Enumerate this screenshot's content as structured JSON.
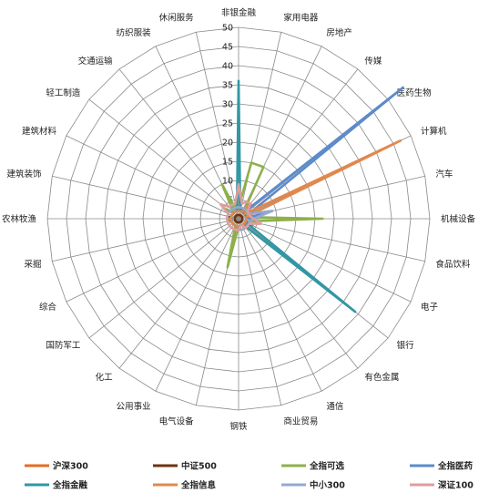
{
  "chart_data": {
    "type": "radar",
    "categories": [
      "非银金融",
      "家用电器",
      "房地产",
      "传媒",
      "医药生物",
      "计算机",
      "汽车",
      "机械设备",
      "食品饮料",
      "电子",
      "银行",
      "有色金属",
      "通信",
      "商业贸易",
      "钢铁",
      "电气设备",
      "公用事业",
      "化工",
      "国防军工",
      "综合",
      "采掘",
      "农林牧渔",
      "建筑装饰",
      "建筑材料",
      "轻工制造",
      "交通运输",
      "纺织服装",
      "休闲服务"
    ],
    "rlim": [
      0,
      50
    ],
    "rticks": [
      0,
      5,
      10,
      15,
      20,
      25,
      30,
      35,
      40,
      45,
      50
    ],
    "legend_position": "bottom",
    "series": [
      {
        "name": "沪深300",
        "color": "#e46c22",
        "values": [
          3,
          2,
          2,
          2,
          2,
          2,
          2,
          3,
          3,
          2,
          2,
          2,
          2,
          2,
          2,
          2,
          2,
          2,
          2,
          2,
          2,
          2,
          2,
          2,
          2,
          2,
          2,
          2
        ]
      },
      {
        "name": "中证500",
        "color": "#6e3310",
        "values": [
          1,
          1,
          1,
          1,
          1,
          1,
          1,
          1,
          1,
          1,
          1,
          1,
          1,
          1,
          1,
          1,
          1,
          1,
          1,
          1,
          1,
          1,
          1,
          1,
          1,
          1,
          1,
          1
        ]
      },
      {
        "name": "全指可选",
        "color": "#8db04a",
        "values": [
          3,
          15,
          15,
          2,
          2,
          2,
          2,
          22,
          3,
          2,
          2,
          2,
          2,
          2,
          2,
          13,
          2,
          2,
          2,
          2,
          2,
          3,
          3,
          3,
          4,
          2,
          10,
          2
        ]
      },
      {
        "name": "全指医药",
        "color": "#5b8bcb",
        "values": [
          2,
          3,
          2,
          2,
          55,
          3,
          9,
          2,
          2,
          4,
          2,
          2,
          2,
          2,
          2,
          2,
          2,
          2,
          2,
          2,
          2,
          2,
          2,
          2,
          2,
          2,
          2,
          2
        ]
      },
      {
        "name": "全指金融",
        "color": "#3197a4",
        "values": [
          36,
          2,
          2,
          2,
          2,
          2,
          2,
          2,
          2,
          2,
          39,
          2,
          2,
          2,
          2,
          2,
          2,
          2,
          2,
          2,
          2,
          2,
          2,
          2,
          2,
          2,
          2,
          2
        ]
      },
      {
        "name": "全指信息",
        "color": "#e1884d",
        "values": [
          2,
          2,
          2,
          5,
          2,
          47,
          2,
          2,
          2,
          2,
          2,
          2,
          3,
          3,
          2,
          2,
          2,
          2,
          2,
          2,
          2,
          2,
          2,
          2,
          2,
          2,
          2,
          2
        ]
      },
      {
        "name": "中小300",
        "color": "#94a8d2",
        "values": [
          3,
          3,
          3,
          3,
          3,
          3,
          9,
          4,
          3,
          3,
          3,
          3,
          3,
          3,
          3,
          3,
          3,
          3,
          3,
          3,
          3,
          3,
          3,
          3,
          3,
          3,
          3,
          3
        ]
      },
      {
        "name": "深证100",
        "color": "#df9d9d",
        "values": [
          9,
          4,
          5,
          5,
          3,
          3,
          3,
          4,
          6,
          3,
          3,
          3,
          2,
          2,
          3,
          3,
          3,
          3,
          3,
          3,
          3,
          3,
          3,
          3,
          6,
          4,
          4,
          4
        ]
      }
    ]
  }
}
